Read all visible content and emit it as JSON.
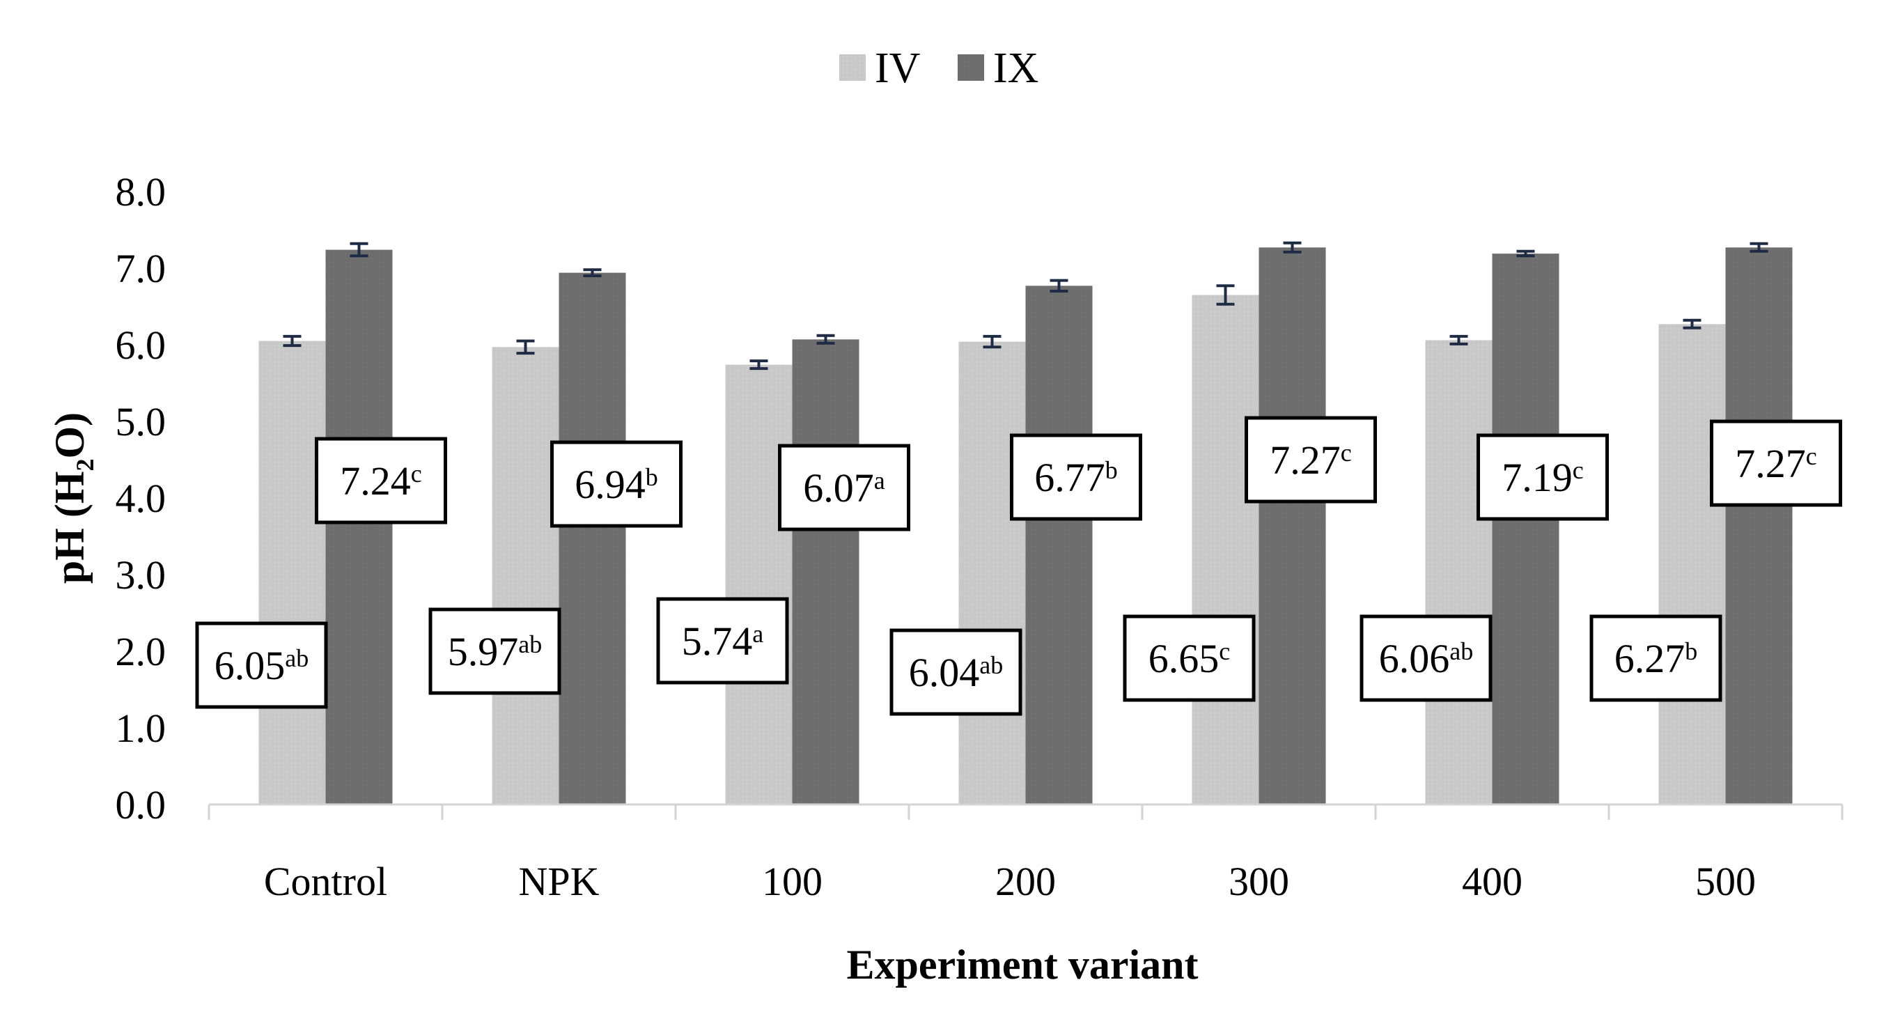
{
  "chart_data": {
    "type": "bar",
    "title": "",
    "xlabel": "Experiment variant",
    "ylabel": "pH (H2O)",
    "ylabel_parts": {
      "main": "pH (H",
      "sub": "2",
      "end": "O)"
    },
    "ylim": [
      0,
      8
    ],
    "yticks": [
      "0.0",
      "1.0",
      "2.0",
      "3.0",
      "4.0",
      "5.0",
      "6.0",
      "7.0",
      "8.0"
    ],
    "categories": [
      "Control",
      "NPK",
      "100",
      "200",
      "300",
      "400",
      "500"
    ],
    "legend_position": "top-center",
    "grid": false,
    "colors": {
      "IV": "#c6c6c6",
      "IX": "#6d6d6d",
      "error_bar": "#1f2a44"
    },
    "series": [
      {
        "name": "IV",
        "values": [
          6.05,
          5.97,
          5.74,
          6.04,
          6.65,
          6.06,
          6.27
        ],
        "errors": [
          0.06,
          0.08,
          0.05,
          0.07,
          0.12,
          0.05,
          0.05
        ],
        "labels": [
          {
            "value": "6.05",
            "letters": "ab"
          },
          {
            "value": "5.97",
            "letters": "ab"
          },
          {
            "value": "5.74",
            "letters": "a"
          },
          {
            "value": "6.04",
            "letters": "ab"
          },
          {
            "value": "6.65",
            "letters": "c"
          },
          {
            "value": "6.06",
            "letters": "ab"
          },
          {
            "value": "6.27",
            "letters": "b"
          }
        ]
      },
      {
        "name": "IX",
        "values": [
          7.24,
          6.94,
          6.07,
          6.77,
          7.27,
          7.19,
          7.27
        ],
        "errors": [
          0.08,
          0.04,
          0.05,
          0.07,
          0.06,
          0.03,
          0.05
        ],
        "labels": [
          {
            "value": "7.24",
            "letters": "c"
          },
          {
            "value": "6.94",
            "letters": "b"
          },
          {
            "value": "6.07",
            "letters": "a"
          },
          {
            "value": "6.77",
            "letters": "b"
          },
          {
            "value": "7.27",
            "letters": "c"
          },
          {
            "value": "7.19",
            "letters": "c"
          },
          {
            "value": "7.27",
            "letters": "c"
          }
        ]
      }
    ]
  }
}
